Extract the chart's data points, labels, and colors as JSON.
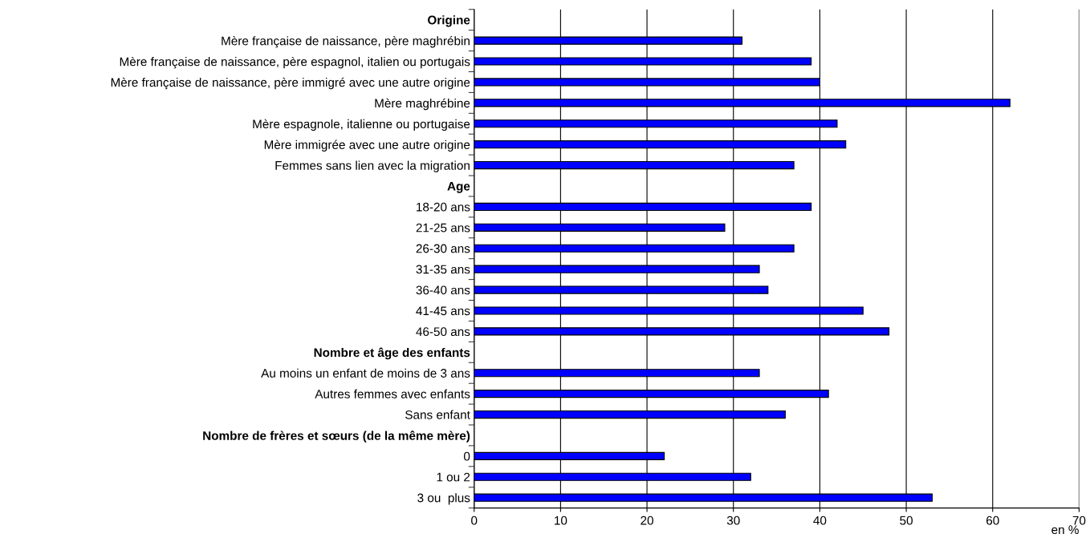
{
  "chart_data": {
    "type": "bar",
    "orientation": "horizontal",
    "xlabel": "en %",
    "categories": [
      "Origine",
      "Mère française de naissance, père maghrébin",
      "Mère française de naissance, père espagnol, italien ou portugais",
      "Mère française de naissance, père immigré avec une autre origine",
      "Mère maghrébine",
      "Mère espagnole, italienne ou portugaise",
      "Mère immigrée avec une autre origine",
      "Femmes sans lien avec la migration",
      "Age",
      "18-20 ans",
      "21-25 ans",
      "26-30 ans",
      "31-35 ans",
      "36-40 ans",
      "41-45 ans",
      "46-50 ans",
      "Nombre et âge des enfants",
      "Au moins un enfant de moins de 3 ans",
      "Autres femmes avec enfants",
      "Sans enfant",
      "Nombre de frères et sœurs (de la même mère)",
      "0",
      "1 ou 2",
      "3 ou  plus"
    ],
    "values": [
      null,
      31,
      39,
      40,
      62,
      42,
      43,
      37,
      null,
      39,
      29,
      37,
      33,
      34,
      45,
      48,
      null,
      33,
      41,
      36,
      null,
      22,
      32,
      53
    ],
    "color": "#0000ff",
    "xlim": [
      0,
      70
    ],
    "xticks": [
      0,
      10,
      20,
      30,
      40,
      50,
      60,
      70
    ],
    "grid": "x"
  }
}
